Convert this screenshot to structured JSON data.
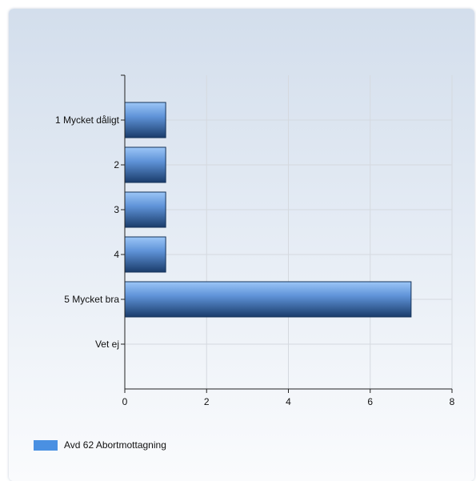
{
  "chart_data": {
    "type": "bar",
    "orientation": "horizontal",
    "categories": [
      "1 Mycket dåligt",
      "2",
      "3",
      "4",
      "5 Mycket bra",
      "Vet ej"
    ],
    "series": [
      {
        "name": "Avd 62 Abortmottagning",
        "values": [
          1,
          1,
          1,
          1,
          7,
          0
        ]
      }
    ],
    "xlim": [
      0,
      8
    ],
    "xticks": [
      "0",
      "2",
      "4",
      "6",
      "8"
    ],
    "grid": true,
    "legend_position": "bottom-left",
    "colors": {
      "bar_light": "#8fbef5",
      "bar_dark": "#1c3f6e",
      "legend": "#4a90e2",
      "grid": "#d5d9df"
    }
  }
}
